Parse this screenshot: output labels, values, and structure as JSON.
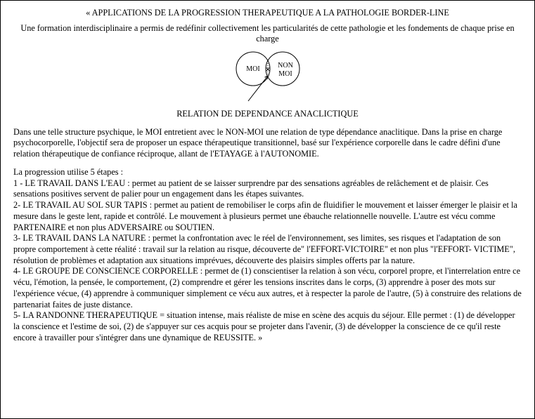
{
  "title": "« APPLICATIONS DE LA PROGRESSION THERAPEUTIQUE A LA PATHOLOGIE  BORDER-LINE",
  "subtitle": "Une formation interdisciplinaire a permis de redéfinir collectivement les particularités de cette pathologie et les fondements de chaque prise en charge",
  "diagram": {
    "left_label": "MOI",
    "right_label": "NON MOI",
    "caption": "RELATION DE DEPENDANCE ANACLICTIQUE",
    "stroke": "#000000",
    "label_fontsize": 10,
    "circle_radius": 24,
    "overlap": 6
  },
  "para1": "Dans une telle structure psychique, le MOI entretient avec le NON-MOI une relation de type dépendance anaclitique. Dans la prise en charge psychocorporelle, l'objectif sera de proposer un espace thérapeutique transitionnel, basé sur l'expérience corporelle dans le cadre défini d'une relation thérapeutique de confiance réciproque, allant de l'ETAYAGE à l'AUTONOMIE.",
  "list_intro": "La progression utilise 5 étapes :",
  "steps": [
    "1 - LE TRAVAIL DANS L'EAU : permet au patient de se laisser surprendre par des sensations agréables de relâchement et de plaisir. Ces sensations positives servent de palier pour un engagement dans les étapes suivantes.",
    "2- LE TRAVAIL AU SOL SUR TAPIS : permet au patient de remobiliser le corps afin de fluidifier le mouvement et laisser émerger le plaisir et la mesure dans le geste lent, rapide et contrôlé. Le mouvement à plusieurs permet une ébauche relationnelle nouvelle. L'autre est vécu comme PARTENAIRE et non plus ADVERSAIRE ou SOUTIEN.",
    "3- LE TRAVAIL DANS LA NATURE : permet la confrontation avec le réel de l'environnement, ses limites, ses risques et l'adaptation de son propre comportement à cette réalité : travail sur la relation au risque, découverte de\" l'EFFORT-VICTOIRE\" et non plus \"l'EFFORT- VICTIME\", résolution de problèmes et adaptation aux situations imprévues, découverte des plaisirs simples offerts par la nature.",
    "4- LE GROUPE DE CONSCIENCE CORPORELLE : permet de (1) conscientiser la relation à son vécu, corporel propre, et l'interrelation entre ce vécu, l'émotion, la pensée, le comportement, (2) comprendre et gérer les tensions inscrites dans le corps, (3) apprendre à poser des mots sur l'expérience vécue, (4) apprendre à communiquer simplement ce vécu aux autres, et à respecter la parole de l'autre, (5) à construire des relations de partenariat faites de juste distance.",
    "5- LA RANDONNE THERAPEUTIQUE = situation intense, mais réaliste de mise en scène des acquis du séjour. Elle permet : (1) de développer la conscience et l'estime de soi, (2) de s'appuyer sur ces acquis pour se projeter dans l'avenir, (3) de développer la conscience de ce qu'il reste encore à travailler pour s'intégrer dans une dynamique de REUSSITE. »"
  ]
}
